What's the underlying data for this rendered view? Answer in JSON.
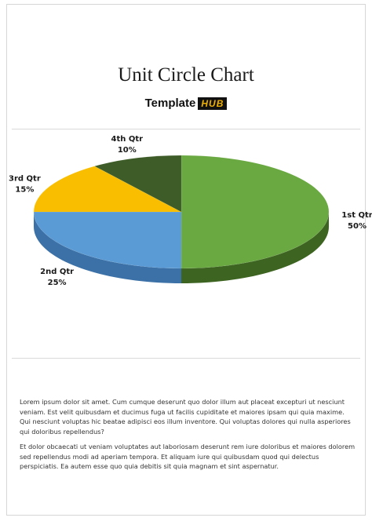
{
  "document": {
    "title": "Unit Circle Chart",
    "logo": {
      "word": "Template",
      "badge": "HUB"
    },
    "paragraphs": [
      "Lorem ipsum dolor sit amet. Cum cumque deserunt quo dolor illum aut placeat excepturi ut nesciunt veniam. Est velit quibusdam et ducimus fuga ut facilis cupiditate et maiores ipsam qui quia maxime. Qui nesciunt voluptas hic beatae adipisci eos illum inventore. Qui voluptas dolores qui nulla asperiores qui doloribus repellendus?",
      "Et dolor obcaecati ut veniam voluptates aut laboriosam deserunt rem iure doloribus et maiores dolorem sed repellendus modi ad aperiam tempora. Et aliquam iure qui quibusdam quod qui delectus perspiciatis. Ea autem esse quo quia debitis sit quia magnam et sint aspernatur."
    ]
  },
  "chart_data": {
    "type": "pie",
    "style": "3d",
    "title": "",
    "categories": [
      "1st Qtr",
      "2nd Qtr",
      "3rd Qtr",
      "4th Qtr"
    ],
    "values": [
      50,
      25,
      15,
      10
    ],
    "value_labels": [
      "50%",
      "25%",
      "15%",
      "10%"
    ],
    "colors": [
      "#6aa842",
      "#5b9bd5",
      "#f9be00",
      "#3d5c27"
    ],
    "side_colors": [
      "#3e6421",
      "#3b71a6",
      "#c48f00",
      "#263d17"
    ],
    "legend": "none"
  }
}
